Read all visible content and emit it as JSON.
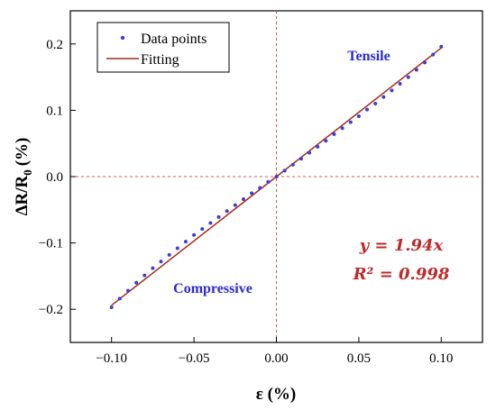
{
  "chart_data": {
    "type": "scatter",
    "title": "",
    "xlabel": "ε (%)",
    "ylabel": "ΔR/R",
    "ylabel_sub": "0",
    "ylabel_unit": "(%)",
    "xlim": [
      -0.125,
      0.125
    ],
    "ylim": [
      -0.25,
      0.25
    ],
    "x_ticks": [
      -0.1,
      -0.05,
      0.0,
      0.05,
      0.1
    ],
    "x_tick_labels": [
      "−0.10",
      "−0.05",
      "0.00",
      "0.05",
      "0.10"
    ],
    "y_ticks": [
      -0.2,
      -0.1,
      0.0,
      0.1,
      0.2
    ],
    "y_tick_labels": [
      "−0.2",
      "−0.1",
      "0.0",
      "0.1",
      "0.2"
    ],
    "grid": false,
    "legend_position": "top-left",
    "series": [
      {
        "name": "Data points",
        "kind": "scatter",
        "color": "#3d3dd6",
        "x": [
          -0.1,
          -0.095,
          -0.09,
          -0.085,
          -0.08,
          -0.075,
          -0.07,
          -0.065,
          -0.06,
          -0.055,
          -0.05,
          -0.045,
          -0.04,
          -0.035,
          -0.03,
          -0.025,
          -0.02,
          -0.015,
          -0.01,
          -0.005,
          0.0,
          0.005,
          0.01,
          0.015,
          0.02,
          0.025,
          0.03,
          0.035,
          0.04,
          0.045,
          0.05,
          0.055,
          0.06,
          0.065,
          0.07,
          0.075,
          0.08,
          0.085,
          0.09,
          0.095,
          0.1
        ],
        "y": [
          -0.197,
          -0.184,
          -0.172,
          -0.16,
          -0.149,
          -0.138,
          -0.128,
          -0.118,
          -0.108,
          -0.098,
          -0.088,
          -0.079,
          -0.07,
          -0.061,
          -0.052,
          -0.043,
          -0.034,
          -0.025,
          -0.017,
          -0.008,
          0.0,
          0.009,
          0.018,
          0.027,
          0.036,
          0.045,
          0.054,
          0.064,
          0.073,
          0.082,
          0.091,
          0.101,
          0.11,
          0.12,
          0.13,
          0.14,
          0.15,
          0.161,
          0.172,
          0.184,
          0.196
        ]
      },
      {
        "name": "Fitting",
        "kind": "line",
        "color": "#a52a1a",
        "x": [
          -0.1,
          0.1
        ],
        "y": [
          -0.194,
          0.194
        ]
      }
    ],
    "reference_lines": {
      "x": 0.0,
      "y": 0.0,
      "color": "#d9534f"
    },
    "annotations": {
      "tensile": "Tensile",
      "compressive": "Compressive",
      "equation": "y = 1.94x",
      "r_squared": "R² = 0.998"
    },
    "colors": {
      "region_label": "#2a2ad0",
      "equation": "#c0282a",
      "axis": "#000000"
    }
  }
}
